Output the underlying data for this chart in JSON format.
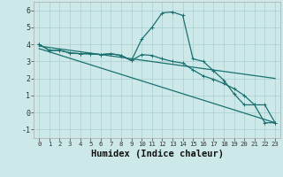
{
  "xlabel": "Humidex (Indice chaleur)",
  "background_color": "#cce8e8",
  "line_color": "#1a7070",
  "grid_color": "#aacfcf",
  "ylim": [
    -1.5,
    6.5
  ],
  "xlim": [
    -0.5,
    23.5
  ],
  "yticks": [
    -1,
    0,
    1,
    2,
    3,
    4,
    5,
    6
  ],
  "xticks": [
    0,
    1,
    2,
    3,
    4,
    5,
    6,
    7,
    8,
    9,
    10,
    11,
    12,
    13,
    14,
    15,
    16,
    17,
    18,
    19,
    20,
    21,
    22,
    23
  ],
  "line1_x": [
    0,
    1,
    2,
    3,
    4,
    5,
    6,
    7,
    8,
    9,
    10,
    11,
    12,
    13,
    14,
    15,
    16,
    17,
    18,
    19,
    20,
    21,
    22,
    23
  ],
  "line1_y": [
    4.0,
    3.65,
    3.65,
    3.5,
    3.45,
    3.45,
    3.4,
    3.45,
    3.35,
    3.05,
    4.3,
    5.0,
    5.85,
    5.9,
    5.7,
    3.15,
    3.0,
    2.45,
    1.9,
    1.1,
    0.45,
    0.45,
    -0.6,
    -0.6
  ],
  "line2_x": [
    0,
    1,
    2,
    3,
    4,
    5,
    6,
    7,
    8,
    9,
    10,
    11,
    12,
    13,
    14,
    15,
    16,
    17,
    18,
    19,
    20,
    21,
    22,
    23
  ],
  "line2_y": [
    4.0,
    3.65,
    3.65,
    3.5,
    3.45,
    3.45,
    3.4,
    3.45,
    3.35,
    3.05,
    3.4,
    3.35,
    3.15,
    3.0,
    2.9,
    2.5,
    2.15,
    1.95,
    1.7,
    1.4,
    1.0,
    0.45,
    0.45,
    -0.6
  ],
  "line3_x": [
    0,
    23
  ],
  "line3_y": [
    3.9,
    2.0
  ],
  "line4_x": [
    0,
    23
  ],
  "line4_y": [
    3.75,
    -0.6
  ],
  "linewidth": 0.9,
  "marker_size": 2.5
}
